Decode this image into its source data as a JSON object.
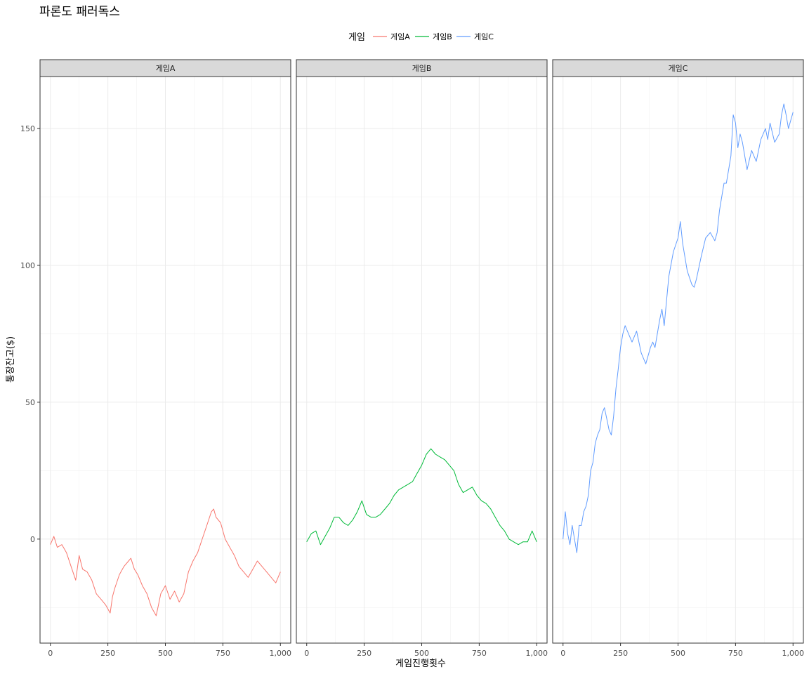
{
  "chart_data": {
    "type": "line",
    "title": "파론도 패러독스",
    "xlabel": "게임진행횟수",
    "ylabel": "통장잔고($)",
    "legend": {
      "title": "게임",
      "position": "top",
      "entries": [
        "게임A",
        "게임B",
        "게임C"
      ]
    },
    "facets": [
      "게임A",
      "게임B",
      "게임C"
    ],
    "xlim": [
      -45,
      1045
    ],
    "ylim": [
      -38,
      169
    ],
    "x_ticks": [
      0,
      250,
      500,
      750,
      1000
    ],
    "x_tick_labels": [
      "0",
      "250",
      "500",
      "750",
      "1,000"
    ],
    "y_ticks": [
      0,
      50,
      100,
      150
    ],
    "y_tick_labels": [
      "0",
      "50",
      "100",
      "150"
    ],
    "grid": true,
    "series": [
      {
        "name": "게임A",
        "color": "#F8766D",
        "x": [
          0,
          15,
          30,
          50,
          70,
          90,
          110,
          125,
          140,
          160,
          180,
          200,
          220,
          240,
          260,
          270,
          280,
          300,
          320,
          340,
          350,
          365,
          380,
          400,
          420,
          440,
          460,
          470,
          480,
          500,
          520,
          540,
          560,
          580,
          600,
          620,
          640,
          660,
          680,
          700,
          710,
          720,
          740,
          760,
          780,
          800,
          820,
          840,
          860,
          880,
          900,
          920,
          940,
          960,
          980,
          1000
        ],
        "y": [
          -2,
          1,
          -3,
          -2,
          -5,
          -10,
          -15,
          -6,
          -11,
          -12,
          -15,
          -20,
          -22,
          -24,
          -27,
          -21,
          -18,
          -13,
          -10,
          -8,
          -7,
          -11,
          -13,
          -17,
          -20,
          -25,
          -28,
          -24,
          -20,
          -17,
          -22,
          -19,
          -23,
          -20,
          -12,
          -8,
          -5,
          0,
          5,
          10,
          11,
          8,
          6,
          0,
          -3,
          -6,
          -10,
          -12,
          -14,
          -11,
          -8,
          -10,
          -12,
          -14,
          -16,
          -12
        ]
      },
      {
        "name": "게임B",
        "color": "#00BA38",
        "x": [
          0,
          20,
          40,
          60,
          80,
          100,
          120,
          140,
          160,
          180,
          200,
          220,
          240,
          260,
          280,
          300,
          320,
          340,
          360,
          380,
          400,
          420,
          440,
          460,
          480,
          500,
          520,
          540,
          560,
          580,
          600,
          620,
          640,
          660,
          680,
          700,
          720,
          740,
          760,
          780,
          800,
          820,
          840,
          860,
          880,
          900,
          920,
          940,
          960,
          980,
          1000
        ],
        "y": [
          -1,
          2,
          3,
          -2,
          1,
          4,
          8,
          8,
          6,
          5,
          7,
          10,
          14,
          9,
          8,
          8,
          9,
          11,
          13,
          16,
          18,
          19,
          20,
          21,
          24,
          27,
          31,
          33,
          31,
          30,
          29,
          27,
          25,
          20,
          17,
          18,
          19,
          16,
          14,
          13,
          11,
          8,
          5,
          3,
          0,
          -1,
          -2,
          -1,
          -1,
          3,
          -1
        ]
      },
      {
        "name": "게임C",
        "color": "#619CFF",
        "x": [
          0,
          10,
          20,
          30,
          40,
          50,
          60,
          70,
          80,
          90,
          100,
          110,
          120,
          130,
          140,
          150,
          160,
          170,
          180,
          190,
          200,
          210,
          220,
          230,
          240,
          250,
          260,
          270,
          280,
          290,
          300,
          320,
          340,
          360,
          380,
          390,
          400,
          420,
          430,
          440,
          460,
          480,
          500,
          510,
          520,
          540,
          560,
          570,
          580,
          600,
          620,
          640,
          660,
          670,
          680,
          690,
          700,
          710,
          720,
          730,
          740,
          750,
          760,
          770,
          780,
          790,
          800,
          820,
          840,
          860,
          880,
          890,
          900,
          920,
          940,
          950,
          960,
          970,
          980,
          990,
          1000
        ],
        "y": [
          0,
          10,
          2,
          -2,
          5,
          0,
          -5,
          5,
          5,
          10,
          12,
          16,
          25,
          28,
          35,
          38,
          40,
          46,
          48,
          44,
          40,
          38,
          45,
          55,
          62,
          70,
          75,
          78,
          76,
          74,
          72,
          76,
          68,
          64,
          70,
          72,
          70,
          80,
          84,
          78,
          96,
          105,
          110,
          116,
          108,
          98,
          93,
          92,
          95,
          103,
          110,
          112,
          109,
          112,
          120,
          125,
          130,
          130,
          135,
          140,
          155,
          152,
          143,
          148,
          145,
          140,
          135,
          142,
          138,
          146,
          150,
          146,
          152,
          145,
          148,
          155,
          159,
          155,
          150,
          153,
          156
        ]
      }
    ]
  }
}
